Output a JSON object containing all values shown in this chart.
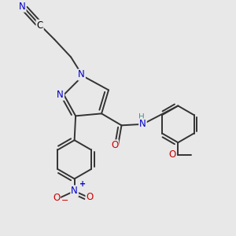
{
  "background_color": "#e8e8e8",
  "atom_colors": {
    "N": "#0000cc",
    "O": "#cc0000",
    "C": "#000000",
    "H": "#4a9090",
    "bond": "#333333"
  },
  "bond_width": 1.4,
  "figsize": [
    3.0,
    3.0
  ],
  "dpi": 100
}
